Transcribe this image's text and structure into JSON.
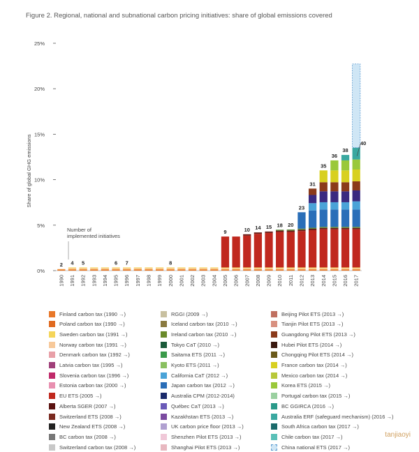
{
  "figure_title": "Figure 2. Regional, national and subnational carbon pricing initiatives: share of global emissions covered",
  "watermark": "tanjiaoyi",
  "chart_data": {
    "type": "bar",
    "title": "Figure 2. Regional, national and subnational carbon pricing initiatives: share of global emissions covered",
    "ylabel": "Share of global GHG emissions",
    "xlabel": "",
    "ylim": [
      0,
      25
    ],
    "yticks": [
      "0%",
      "5%",
      "10%",
      "15%",
      "20%",
      "25%"
    ],
    "annotation": "Number of implemented initiatives",
    "categories": [
      "1990",
      "1991",
      "1992",
      "1993",
      "1994",
      "1995",
      "1996",
      "1997",
      "1998",
      "1999",
      "2000",
      "2001",
      "2002",
      "2003",
      "2004",
      "2005",
      "2006",
      "2007",
      "2008",
      "2009",
      "2010",
      "2011",
      "2012",
      "2013",
      "2014",
      "2015",
      "2016",
      "2017"
    ],
    "count_labels": [
      "2",
      "4",
      "5",
      "",
      "",
      "6",
      "7",
      "",
      "",
      "",
      "8",
      "",
      "",
      "",
      "",
      "9",
      "",
      "10",
      "14",
      "15",
      "18",
      "20",
      "23",
      "31",
      "35",
      "36",
      "38",
      "40"
    ],
    "segments": [
      {
        "name": "Finland carbon tax",
        "color": "#e8782a",
        "values": [
          0.12,
          0.12,
          0.12,
          0.12,
          0.12,
          0.12,
          0.12,
          0.12,
          0.12,
          0.12,
          0.12,
          0.12,
          0.12,
          0.12,
          0.12,
          0.12,
          0.12,
          0.12,
          0.12,
          0.12,
          0.12,
          0.12,
          0.12,
          0.12,
          0.12,
          0.12,
          0.12,
          0.12
        ]
      },
      {
        "name": "Poland carbon tax",
        "color": "#f4a640",
        "values": [
          0.05,
          0.05,
          0.05,
          0.05,
          0.05,
          0.05,
          0.05,
          0.05,
          0.05,
          0.05,
          0.05,
          0.05,
          0.05,
          0.05,
          0.05,
          0.05,
          0.05,
          0.05,
          0.05,
          0.05,
          0.05,
          0.05,
          0.05,
          0.05,
          0.05,
          0.05,
          0.05,
          0.05
        ]
      },
      {
        "name": "Norway carbon tax",
        "color": "#f7c99a",
        "values": [
          0,
          0.1,
          0.1,
          0.1,
          0.1,
          0.1,
          0.1,
          0.1,
          0.1,
          0.1,
          0.1,
          0.1,
          0.1,
          0.1,
          0.1,
          0.1,
          0.1,
          0.1,
          0.1,
          0.1,
          0.1,
          0.1,
          0.1,
          0.1,
          0.1,
          0.1,
          0.1,
          0.1
        ]
      },
      {
        "name": "Sweden carbon tax",
        "color": "#f5d55a",
        "values": [
          0,
          0.08,
          0.08,
          0.08,
          0.08,
          0.08,
          0.08,
          0.08,
          0.08,
          0.08,
          0.08,
          0.08,
          0.08,
          0.08,
          0.08,
          0.08,
          0.08,
          0.08,
          0.08,
          0.08,
          0.08,
          0.08,
          0.08,
          0.08,
          0.08,
          0.08,
          0.08,
          0.08
        ]
      },
      {
        "name": "EU ETS",
        "color": "#c0281e",
        "values": [
          0,
          0,
          0,
          0,
          0,
          0,
          0,
          0,
          0,
          0,
          0,
          0,
          0,
          0,
          0,
          3.4,
          3.4,
          3.5,
          3.7,
          3.8,
          3.9,
          3.9,
          4.0,
          4.1,
          4.2,
          4.2,
          4.2,
          4.2
        ]
      },
      {
        "name": "Switzerland ETS / Alberta SGER",
        "color": "#6a1a14",
        "values": [
          0,
          0,
          0,
          0,
          0,
          0,
          0,
          0,
          0,
          0,
          0,
          0,
          0,
          0,
          0,
          0,
          0,
          0.15,
          0.15,
          0.15,
          0.15,
          0.15,
          0.15,
          0.15,
          0.15,
          0.15,
          0.15,
          0.15
        ]
      },
      {
        "name": "Tokyo CaT / Saitama ETS / Kyoto ETS",
        "color": "#5a8a3a",
        "values": [
          0,
          0,
          0,
          0,
          0,
          0,
          0,
          0,
          0,
          0,
          0,
          0,
          0,
          0,
          0,
          0,
          0,
          0,
          0,
          0,
          0.1,
          0.12,
          0.12,
          0.12,
          0.12,
          0.12,
          0.12,
          0.12
        ]
      },
      {
        "name": "Australia CPM / Japan carbon tax",
        "color": "#2a6eb8",
        "values": [
          0,
          0,
          0,
          0,
          0,
          0,
          0,
          0,
          0,
          0,
          0,
          0,
          0,
          0,
          0,
          0,
          0,
          0,
          0,
          0,
          0,
          0,
          1.8,
          1.9,
          1.9,
          1.9,
          1.9,
          1.9
        ]
      },
      {
        "name": "California CaT / Quebec CaT / Kazakhstan ETS",
        "color": "#4aa3d8",
        "values": [
          0,
          0,
          0,
          0,
          0,
          0,
          0,
          0,
          0,
          0,
          0,
          0,
          0,
          0,
          0,
          0,
          0,
          0,
          0,
          0,
          0,
          0,
          0,
          0.8,
          0.8,
          0.8,
          0.8,
          0.9
        ]
      },
      {
        "name": "Chinese pilot ETSs",
        "color": "#3a2a80",
        "values": [
          0,
          0,
          0,
          0,
          0,
          0,
          0,
          0,
          0,
          0,
          0,
          0,
          0,
          0,
          0,
          0,
          0,
          0,
          0,
          0,
          0,
          0,
          0,
          0.9,
          1.2,
          1.2,
          1.2,
          1.2
        ]
      },
      {
        "name": "Guangdong / Hubei Pilot ETS",
        "color": "#8a3a1a",
        "values": [
          0,
          0,
          0,
          0,
          0,
          0,
          0,
          0,
          0,
          0,
          0,
          0,
          0,
          0,
          0,
          0,
          0,
          0,
          0,
          0,
          0,
          0,
          0,
          0.7,
          1.0,
          1.0,
          1.0,
          1.0
        ]
      },
      {
        "name": "France / Mexico carbon tax",
        "color": "#d8d020",
        "values": [
          0,
          0,
          0,
          0,
          0,
          0,
          0,
          0,
          0,
          0,
          0,
          0,
          0,
          0,
          0,
          0,
          0,
          0,
          0,
          0,
          0,
          0,
          0,
          0,
          1.3,
          1.3,
          1.3,
          1.3
        ]
      },
      {
        "name": "Korea ETS",
        "color": "#9ac83a",
        "values": [
          0,
          0,
          0,
          0,
          0,
          0,
          0,
          0,
          0,
          0,
          0,
          0,
          0,
          0,
          0,
          0,
          0,
          0,
          0,
          0,
          0,
          0,
          0,
          0,
          0,
          1.1,
          1.1,
          1.1
        ]
      },
      {
        "name": "Australia ERF / Ontario / BC GGIRCA",
        "color": "#3aa8a0",
        "values": [
          0,
          0,
          0,
          0,
          0,
          0,
          0,
          0,
          0,
          0,
          0,
          0,
          0,
          0,
          0,
          0,
          0,
          0,
          0,
          0,
          0,
          0,
          0,
          0,
          0,
          0,
          0.6,
          1.3
        ]
      },
      {
        "name": "China national ETS (2017)",
        "color": "#cfe6f5",
        "values": [
          0,
          0,
          0,
          0,
          0,
          0,
          0,
          0,
          0,
          0,
          0,
          0,
          0,
          0,
          0,
          0,
          0,
          0,
          0,
          0,
          0,
          0,
          0,
          0,
          0,
          0,
          0,
          9.2
        ]
      }
    ]
  },
  "legend": [
    {
      "label": "Finland carbon tax (1990 →)",
      "color": "#e8782a"
    },
    {
      "label": "Poland carbon tax (1990 →)",
      "color": "#e06a20"
    },
    {
      "label": "Sweden carbon tax (1991 →)",
      "color": "#f5d55a"
    },
    {
      "label": "Norway carbon tax (1991 →)",
      "color": "#f7c99a"
    },
    {
      "label": "Denmark carbon tax (1992 →)",
      "color": "#e8a0a8"
    },
    {
      "label": "Latvia carbon tax (1995 →)",
      "color": "#a0407a"
    },
    {
      "label": "Slovenia carbon tax (1996 →)",
      "color": "#c02a6a"
    },
    {
      "label": "Estonia carbon tax (2000 →)",
      "color": "#e890b0"
    },
    {
      "label": "EU ETS (2005 →)",
      "color": "#c0281e"
    },
    {
      "label": "Alberta SGER (2007 →)",
      "color": "#5a1210"
    },
    {
      "label": "Switzerland ETS (2008 →)",
      "color": "#7a2a20"
    },
    {
      "label": "New Zealand ETS (2008 →)",
      "color": "#222222"
    },
    {
      "label": "BC carbon tax (2008 →)",
      "color": "#777777"
    },
    {
      "label": "Switzerland carbon tax (2008 →)",
      "color": "#c8c8c8"
    },
    {
      "label": "RGGI (2009 →)",
      "color": "#c8c0a0"
    },
    {
      "label": "Iceland carbon tax (2010 →)",
      "color": "#8a7a40"
    },
    {
      "label": "Ireland carbon tax (2010 →)",
      "color": "#6a8a2a"
    },
    {
      "label": "Tokyo CaT (2010 →)",
      "color": "#1a5a3a"
    },
    {
      "label": "Saitama ETS (2011 →)",
      "color": "#3a9a4a"
    },
    {
      "label": "Kyoto ETS (2011 →)",
      "color": "#8ac060"
    },
    {
      "label": "California CaT (2012 →)",
      "color": "#4aa3d8"
    },
    {
      "label": "Japan carbon tax (2012 →)",
      "color": "#2a6eb8"
    },
    {
      "label": "Australia CPM (2012-2014)",
      "color": "#1a2a6a"
    },
    {
      "label": "Québec CaT (2013 →)",
      "color": "#6a5ab8"
    },
    {
      "label": "Kazakhstan ETS (2013 →)",
      "color": "#7a4aa0"
    },
    {
      "label": "UK carbon price floor (2013 →)",
      "color": "#b0a0d0"
    },
    {
      "label": "Shenzhen Pilot ETS (2013 →)",
      "color": "#f0c8d8"
    },
    {
      "label": "Shanghai Pilot ETS (2013 →)",
      "color": "#e8b8c0"
    },
    {
      "label": "Beijing Pilot ETS (2013 →)",
      "color": "#c07060"
    },
    {
      "label": "Tianjin Pilot ETS (2013 →)",
      "color": "#d89080"
    },
    {
      "label": "Guangdong Pilot ETS (2013 →)",
      "color": "#8a3a1a"
    },
    {
      "label": "Hubei Pilot ETS (2014 →)",
      "color": "#3a1a10"
    },
    {
      "label": "Chongqing Pilot ETS (2014 →)",
      "color": "#6a5a1a"
    },
    {
      "label": "France carbon tax (2014 →)",
      "color": "#d8d020"
    },
    {
      "label": "Mexico carbon tax (2014 →)",
      "color": "#b8c83a"
    },
    {
      "label": "Korea ETS (2015 →)",
      "color": "#9ac83a"
    },
    {
      "label": "Portugal carbon tax (2015 →)",
      "color": "#9ad0a0"
    },
    {
      "label": "BC GGIRCA (2016 →)",
      "color": "#2a9a8a"
    },
    {
      "label": "Australia ERF (safeguard mechanism) (2016 →)",
      "color": "#3aa8a0"
    },
    {
      "label": "South Africa carbon tax (2017 →)",
      "color": "#1a6a6a"
    },
    {
      "label": "Chile carbon tax (2017 →)",
      "color": "#5ac0b8"
    },
    {
      "label": "China national ETS (2017 →)",
      "color": "#cfe6f5"
    }
  ]
}
